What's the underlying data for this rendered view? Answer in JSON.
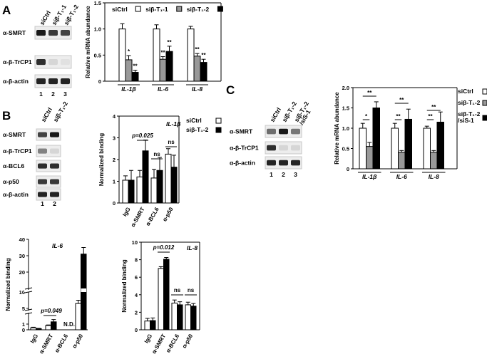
{
  "panels": {
    "A": {
      "label": "A",
      "blot": {
        "lanes": [
          "siCtrl",
          "siβ-T₁-1",
          "siβ-T₁-2"
        ],
        "lane_numbers": [
          "1",
          "2",
          "3"
        ],
        "rows": [
          "α-SMRT",
          "α-β-TrCP1",
          "α-β-actin"
        ]
      }
    },
    "B": {
      "label": "B",
      "blot": {
        "lanes": [
          "siCtrl",
          "siβ-T₁-2"
        ],
        "lane_numbers": [
          "1",
          "2"
        ],
        "rows": [
          "α-SMRT",
          "α-β-TrCP1",
          "α-BCL6",
          "α-p50",
          "α-β-actin"
        ]
      }
    },
    "C": {
      "label": "C",
      "blot": {
        "lanes": [
          "siCtrl",
          "siβ-T₁-2",
          "siβ-T₁-2\n/siS-1"
        ],
        "lane_numbers": [
          "1",
          "2",
          "3"
        ],
        "rows": [
          "α-SMRT",
          "α-β-TrCP1",
          "α-β-actin"
        ]
      }
    }
  },
  "chart_data": [
    {
      "id": "A-mrna",
      "type": "bar",
      "categories": [
        "IL-1β",
        "IL-6",
        "IL-8"
      ],
      "series": [
        {
          "name": "siCtrl",
          "values": [
            1.0,
            1.0,
            1.0
          ],
          "errors": [
            0.1,
            0.08,
            0.05
          ],
          "color": "#ffffff"
        },
        {
          "name": "siβ-T₁-1",
          "values": [
            0.41,
            0.42,
            0.48
          ],
          "errors": [
            0.08,
            0.05,
            0.05
          ],
          "color": "#999999"
        },
        {
          "name": "siβ-T₁-2",
          "values": [
            0.17,
            0.57,
            0.36
          ],
          "errors": [
            0.04,
            0.1,
            0.06
          ],
          "color": "#000000"
        }
      ],
      "ylabel": "Relative mRNA abundance",
      "yticks": [
        "0",
        "0.5",
        "1.0",
        "1.5"
      ],
      "ylim": [
        0,
        1.5
      ],
      "significance": [
        [
          "*",
          "**"
        ],
        [
          "**",
          "**"
        ],
        [
          "**",
          "**"
        ]
      ],
      "legend_position": "top"
    },
    {
      "id": "B-il1b",
      "type": "bar",
      "title": "IL-1β",
      "categories": [
        "IgG",
        "α-SMRT",
        "α-BCL6",
        "α-p50"
      ],
      "series": [
        {
          "name": "siCtrl",
          "values": [
            1.05,
            1.2,
            1.15,
            2.25
          ],
          "errors": [
            0.2,
            0.3,
            0.4,
            0.25
          ],
          "color": "#ffffff"
        },
        {
          "name": "siβ-T₁-2",
          "values": [
            1.05,
            2.4,
            1.5,
            1.65
          ],
          "errors": [
            0.45,
            0.5,
            0.6,
            0.55
          ],
          "color": "#000000"
        }
      ],
      "ylabel": "Normalized binding",
      "yticks": [
        "0",
        "1",
        "2",
        "3",
        "4"
      ],
      "ylim": [
        0,
        4
      ],
      "annotations": [
        {
          "category": 1,
          "text": "p=0.025"
        },
        {
          "category": 2,
          "text": "ns"
        },
        {
          "category": 3,
          "text": "ns"
        }
      ],
      "legend_position": "right"
    },
    {
      "id": "B-il6",
      "type": "bar",
      "title": "IL-6",
      "categories": [
        "IgG",
        "α-SMRT",
        "α-BCL6",
        "α-p50"
      ],
      "series": [
        {
          "name": "siCtrl",
          "values": [
            0.35,
            0.75,
            null,
            6.5
          ],
          "errors": [
            0.1,
            0.1,
            null,
            1.0
          ],
          "color": "#ffffff"
        },
        {
          "name": "siβ-T₁-2",
          "values": [
            0.2,
            1.4,
            null,
            31
          ],
          "errors": [
            0.05,
            0.2,
            null,
            4
          ],
          "color": "#000000"
        }
      ],
      "ylabel": "Normalized binding",
      "yticks": [
        "0",
        "1",
        "5",
        "10",
        "20",
        "30",
        "40"
      ],
      "axis_break": true,
      "annotations": [
        {
          "category": 1,
          "text": "p=0.049"
        },
        {
          "category": 2,
          "text": "N.D."
        }
      ]
    },
    {
      "id": "B-il8",
      "type": "bar",
      "title": "IL-8",
      "categories": [
        "IgG",
        "α-SMRT",
        "α-BCL6",
        "α-p50"
      ],
      "series": [
        {
          "name": "siCtrl",
          "values": [
            1.0,
            7.0,
            3.05,
            2.85
          ],
          "errors": [
            0.3,
            0.2,
            0.35,
            0.3
          ],
          "color": "#ffffff"
        },
        {
          "name": "siβ-T₁-2",
          "values": [
            1.05,
            8.05,
            2.85,
            2.7
          ],
          "errors": [
            0.3,
            0.2,
            0.35,
            0.3
          ],
          "color": "#000000"
        }
      ],
      "ylabel": "Normalized binding",
      "yticks": [
        "0",
        "2",
        "4",
        "6",
        "8",
        "10"
      ],
      "ylim": [
        0,
        10
      ],
      "annotations": [
        {
          "category": 1,
          "text": "p=0.012"
        },
        {
          "category": 2,
          "text": "ns"
        },
        {
          "category": 3,
          "text": "ns"
        }
      ]
    },
    {
      "id": "C-mrna",
      "type": "bar",
      "categories": [
        "IL-1β",
        "IL-6",
        "IL-8"
      ],
      "series": [
        {
          "name": "siCtrl",
          "values": [
            1.0,
            1.0,
            1.0
          ],
          "errors": [
            0.12,
            0.12,
            0.05
          ],
          "color": "#ffffff"
        },
        {
          "name": "siβ-T₁-2",
          "values": [
            0.55,
            0.41,
            0.41
          ],
          "errors": [
            0.1,
            0.04,
            0.04
          ],
          "color": "#999999"
        },
        {
          "name": "siβ-T₁-2\n/siS-1",
          "values": [
            1.5,
            1.22,
            1.15
          ],
          "errors": [
            0.15,
            0.25,
            0.25
          ],
          "color": "#000000"
        }
      ],
      "ylabel": "Relative mRNA abundance",
      "yticks": [
        "0",
        "0.5",
        "1.0",
        "1.5",
        "2.0"
      ],
      "ylim": [
        0,
        2
      ],
      "significance": [
        [
          "*",
          "**"
        ],
        [
          "**",
          "**"
        ],
        [
          "**",
          "**"
        ]
      ],
      "legend_position": "right"
    }
  ]
}
